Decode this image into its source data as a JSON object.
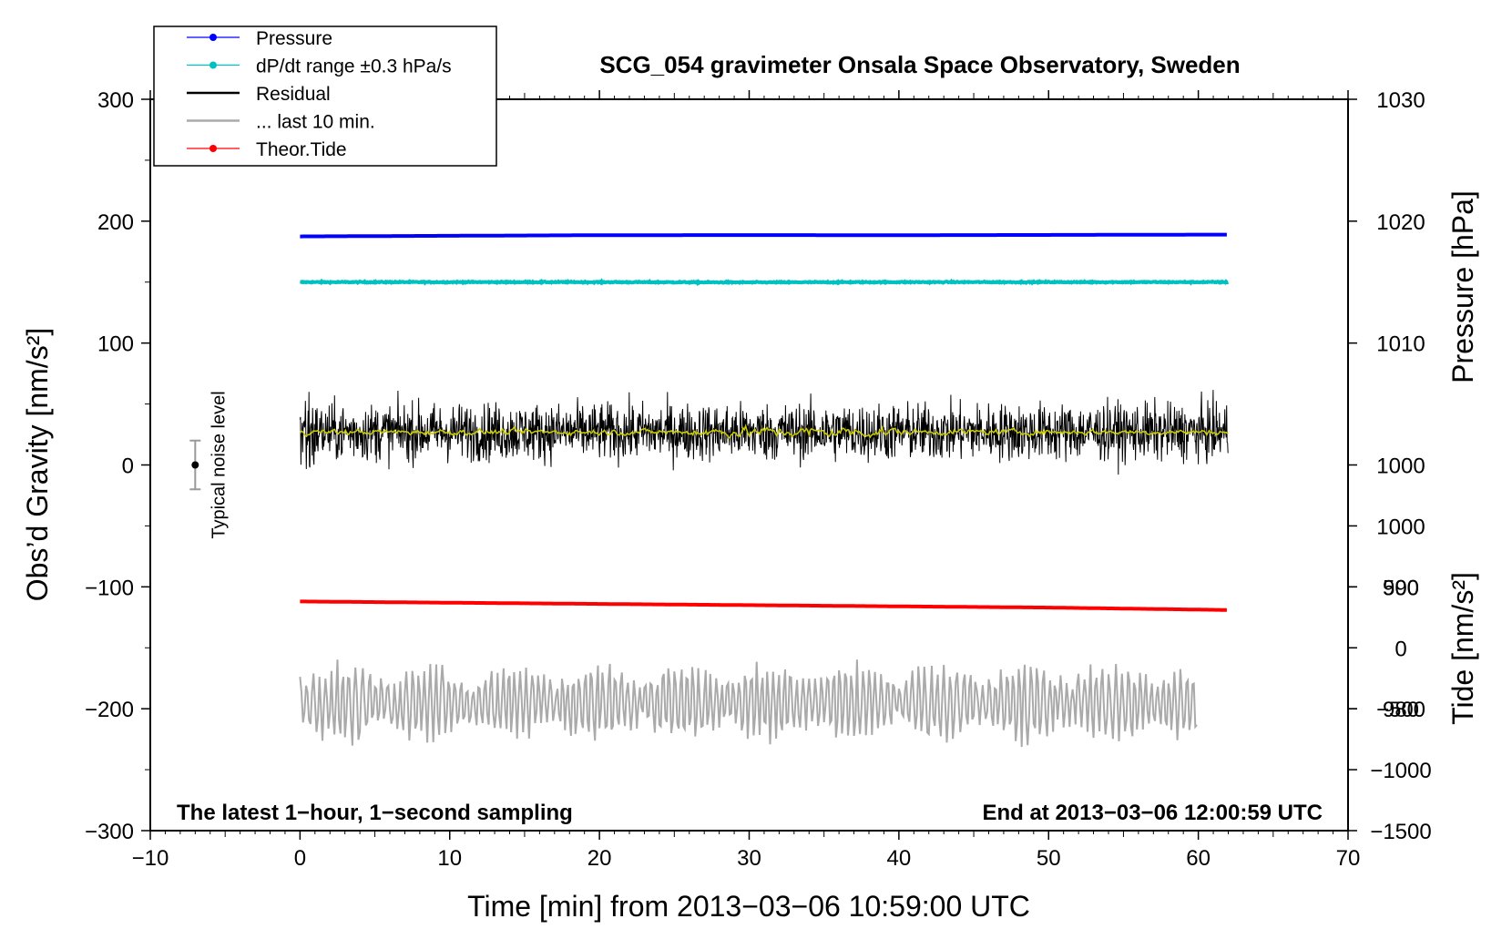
{
  "chart_data": {
    "type": "line",
    "title": "SCG_054 gravimeter Onsala Space Observatory, Sweden",
    "xlabel": "Time [min] from 2013−03−06 10:59:00 UTC",
    "ylabel_left": "Obs’d Gravity [nm/s²]",
    "ylabel_right_top": "Pressure [hPa]",
    "ylabel_right_bottom": "Tide [nm/s²]",
    "xlim": [
      -10,
      70
    ],
    "ylim_left": [
      -300,
      300
    ],
    "xticks": [
      -10,
      0,
      10,
      20,
      30,
      40,
      50,
      60,
      70
    ],
    "xtick_labels": [
      "−10",
      "0",
      "10",
      "20",
      "30",
      "40",
      "50",
      "60",
      "70"
    ],
    "yticks_left": [
      300,
      200,
      100,
      0,
      -100,
      -200,
      -300
    ],
    "ytick_labels_left": [
      "300",
      "200",
      "100",
      "0",
      "−100",
      "−200",
      "−300"
    ],
    "pressure_axis": {
      "ticks": [
        1030,
        1020,
        1010,
        1000,
        990,
        980
      ],
      "labels": [
        "1030",
        "1020",
        "1010",
        "1000",
        "990",
        "980"
      ],
      "gravity_at_1030": 300,
      "gravity_per_hpa": 10
    },
    "tide_axis": {
      "ticks": [
        1000,
        500,
        0,
        -500,
        -1000,
        -1500
      ],
      "labels": [
        "1000",
        "500",
        "0",
        "−500",
        "−1000",
        "−1500"
      ],
      "gravity_at_0": -150,
      "gravity_per_unit": 0.1
    },
    "legend": {
      "position": "top-left",
      "entries": [
        {
          "label": "Pressure",
          "color": "#0000ff",
          "marker": true
        },
        {
          "label": "dP/dt range ±0.3 hPa/s",
          "color": "#00c0c0",
          "marker": true
        },
        {
          "label": "Residual",
          "color": "#000000",
          "marker": false
        },
        {
          "label": "... last 10 min.",
          "color": "#aaaaaa",
          "marker": false
        },
        {
          "label": "Theor.Tide",
          "color": "#ff0000",
          "marker": true
        }
      ]
    },
    "series": [
      {
        "name": "Pressure",
        "color": "#0000ff",
        "x": [
          0,
          10,
          20,
          30,
          40,
          50,
          62
        ],
        "y": [
          187.5,
          188,
          188.5,
          188.6,
          188.5,
          188.7,
          189
        ]
      },
      {
        "name": "dP/dt",
        "color": "#00c0c0",
        "x": [
          0,
          10,
          20,
          30,
          40,
          50,
          62
        ],
        "y": [
          150,
          150,
          150,
          149.8,
          150,
          150,
          150
        ]
      },
      {
        "name": "Residual",
        "color": "#000000",
        "x_range": [
          0,
          62
        ],
        "mean": 27,
        "spread": 25
      },
      {
        "name": "Residual smoothed",
        "color": "#cccc00",
        "x_range": [
          0,
          62
        ],
        "mean": 27,
        "spread": 4
      },
      {
        "name": "Theor.Tide",
        "color": "#ff0000",
        "x": [
          0,
          10,
          20,
          30,
          40,
          50,
          62
        ],
        "y": [
          -112,
          -113,
          -114,
          -115,
          -116,
          -117,
          -119
        ]
      },
      {
        "name": "... last 10 min.",
        "color": "#aaaaaa",
        "x_range": [
          0,
          60
        ],
        "mean": -195,
        "amplitude": 30
      }
    ],
    "noise_marker": {
      "label": "Typical noise level",
      "x": -7,
      "y": 0,
      "yerr": 20
    },
    "annotations": {
      "bottom_left": "The latest 1−hour, 1−second sampling",
      "bottom_right": "End at 2013−03−06 12:00:59 UTC"
    }
  }
}
